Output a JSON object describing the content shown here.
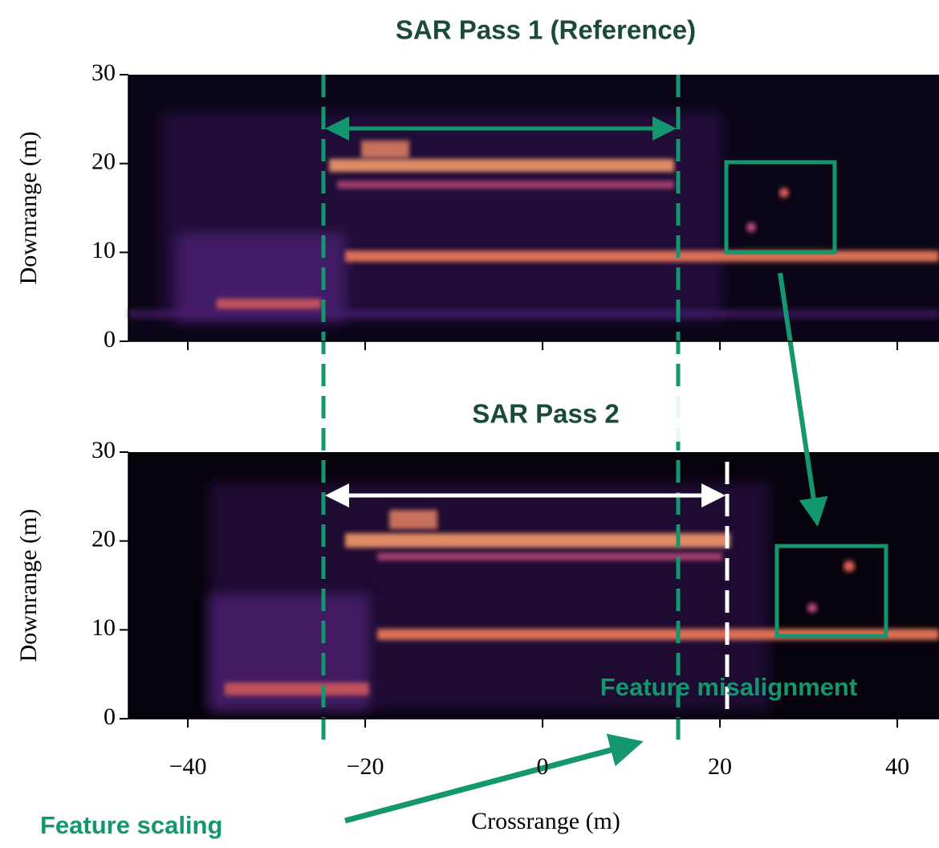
{
  "chart_data": [
    {
      "type": "image",
      "title": "SAR Pass 1 (Reference)",
      "ylabel": "Downrange (m)",
      "xlim": [
        -46.7,
        44.7
      ],
      "ylim": [
        0,
        30
      ],
      "xticks": [
        {
          "value": -40,
          "label": "−40"
        },
        {
          "value": -20,
          "label": "−20"
        },
        0,
        20,
        40
      ],
      "yticks": [
        0,
        10,
        20,
        30
      ]
    },
    {
      "type": "image",
      "title": "SAR Pass 2",
      "xlabel": "Crossrange (m)",
      "ylabel": "Downrange (m)",
      "xlim": [
        -46.7,
        44.7
      ],
      "ylim": [
        0,
        30
      ],
      "xticks": [
        {
          "value": -40,
          "label": "−40"
        },
        {
          "value": -20,
          "label": "−20"
        },
        0,
        20,
        40
      ],
      "yticks": [
        0,
        10,
        20,
        30
      ],
      "annotations": [
        "Feature misalignment",
        "Feature scaling"
      ]
    }
  ]
}
